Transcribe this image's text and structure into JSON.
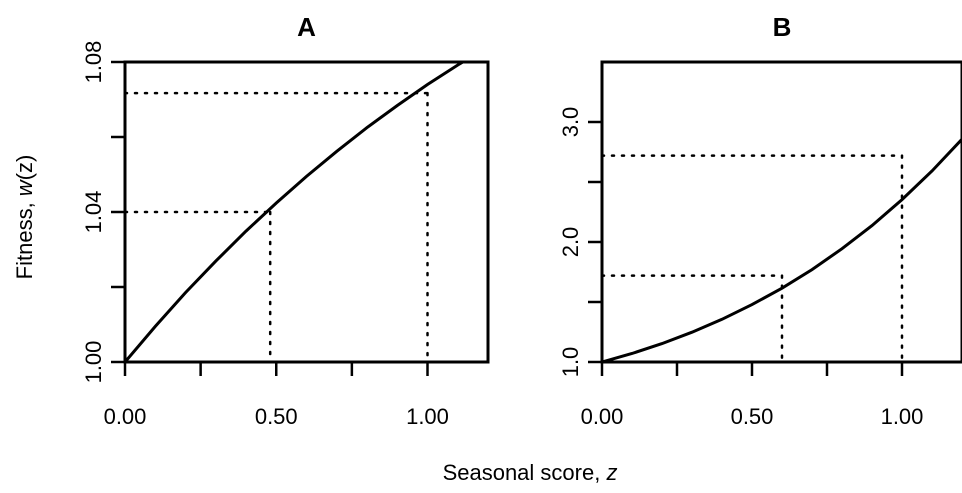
{
  "figure": {
    "ylabel_prefix": "Fitness, ",
    "ylabel_var": "w",
    "ylabel_suffix": "(z)",
    "xlabel_prefix": "Seasonal score, ",
    "xlabel_var": "z"
  },
  "chart_data": [
    {
      "type": "line",
      "title": "A",
      "xlim": [
        0,
        1.2
      ],
      "ylim": [
        1.0,
        1.08
      ],
      "x_ticks": [
        0,
        0.25,
        0.5,
        0.75,
        1.0
      ],
      "x_tick_labels": [
        {
          "value": 0,
          "label": "0.00"
        },
        {
          "value": 0.5,
          "label": "0.50"
        },
        {
          "value": 1.0,
          "label": "1.00"
        }
      ],
      "y_ticks": [
        1.0,
        1.02,
        1.04,
        1.06,
        1.08
      ],
      "y_tick_labels": [
        {
          "value": 1.0,
          "label": "1.00"
        },
        {
          "value": 1.04,
          "label": "1.04"
        },
        {
          "value": 1.08,
          "label": "1.08"
        }
      ],
      "curve": {
        "x": [
          0,
          0.1,
          0.2,
          0.3,
          0.4,
          0.5,
          0.6,
          0.7,
          0.8,
          0.9,
          1.0,
          1.1,
          1.2
        ],
        "y": [
          1.0,
          1.0095,
          1.0185,
          1.0269,
          1.0349,
          1.0424,
          1.0495,
          1.0562,
          1.0625,
          1.0684,
          1.074,
          1.0792,
          1.084
        ]
      },
      "guides": [
        {
          "x": 0.48,
          "y": 1.04
        },
        {
          "x": 1.0,
          "y": 1.0717
        }
      ]
    },
    {
      "type": "line",
      "title": "B",
      "xlim": [
        0,
        1.2
      ],
      "ylim": [
        1.0,
        3.5
      ],
      "x_ticks": [
        0,
        0.25,
        0.5,
        0.75,
        1.0
      ],
      "x_tick_labels": [
        {
          "value": 0,
          "label": "0.00"
        },
        {
          "value": 0.5,
          "label": "0.50"
        },
        {
          "value": 1.0,
          "label": "1.00"
        }
      ],
      "y_ticks": [
        1.0,
        1.5,
        2.0,
        2.5,
        3.0
      ],
      "y_tick_labels": [
        {
          "value": 1.0,
          "label": "1.0"
        },
        {
          "value": 2.0,
          "label": "2.0"
        },
        {
          "value": 3.0,
          "label": "3.0"
        }
      ],
      "curve": {
        "x": [
          0,
          0.1,
          0.2,
          0.3,
          0.4,
          0.5,
          0.6,
          0.7,
          0.8,
          0.9,
          1.0,
          1.1,
          1.2
        ],
        "y": [
          1.0,
          1.071,
          1.153,
          1.248,
          1.356,
          1.478,
          1.615,
          1.77,
          1.944,
          2.137,
          2.353,
          2.592,
          2.857
        ]
      },
      "guides": [
        {
          "x": 0.6,
          "y": 1.72
        },
        {
          "x": 1.0,
          "y": 2.72
        }
      ]
    }
  ]
}
